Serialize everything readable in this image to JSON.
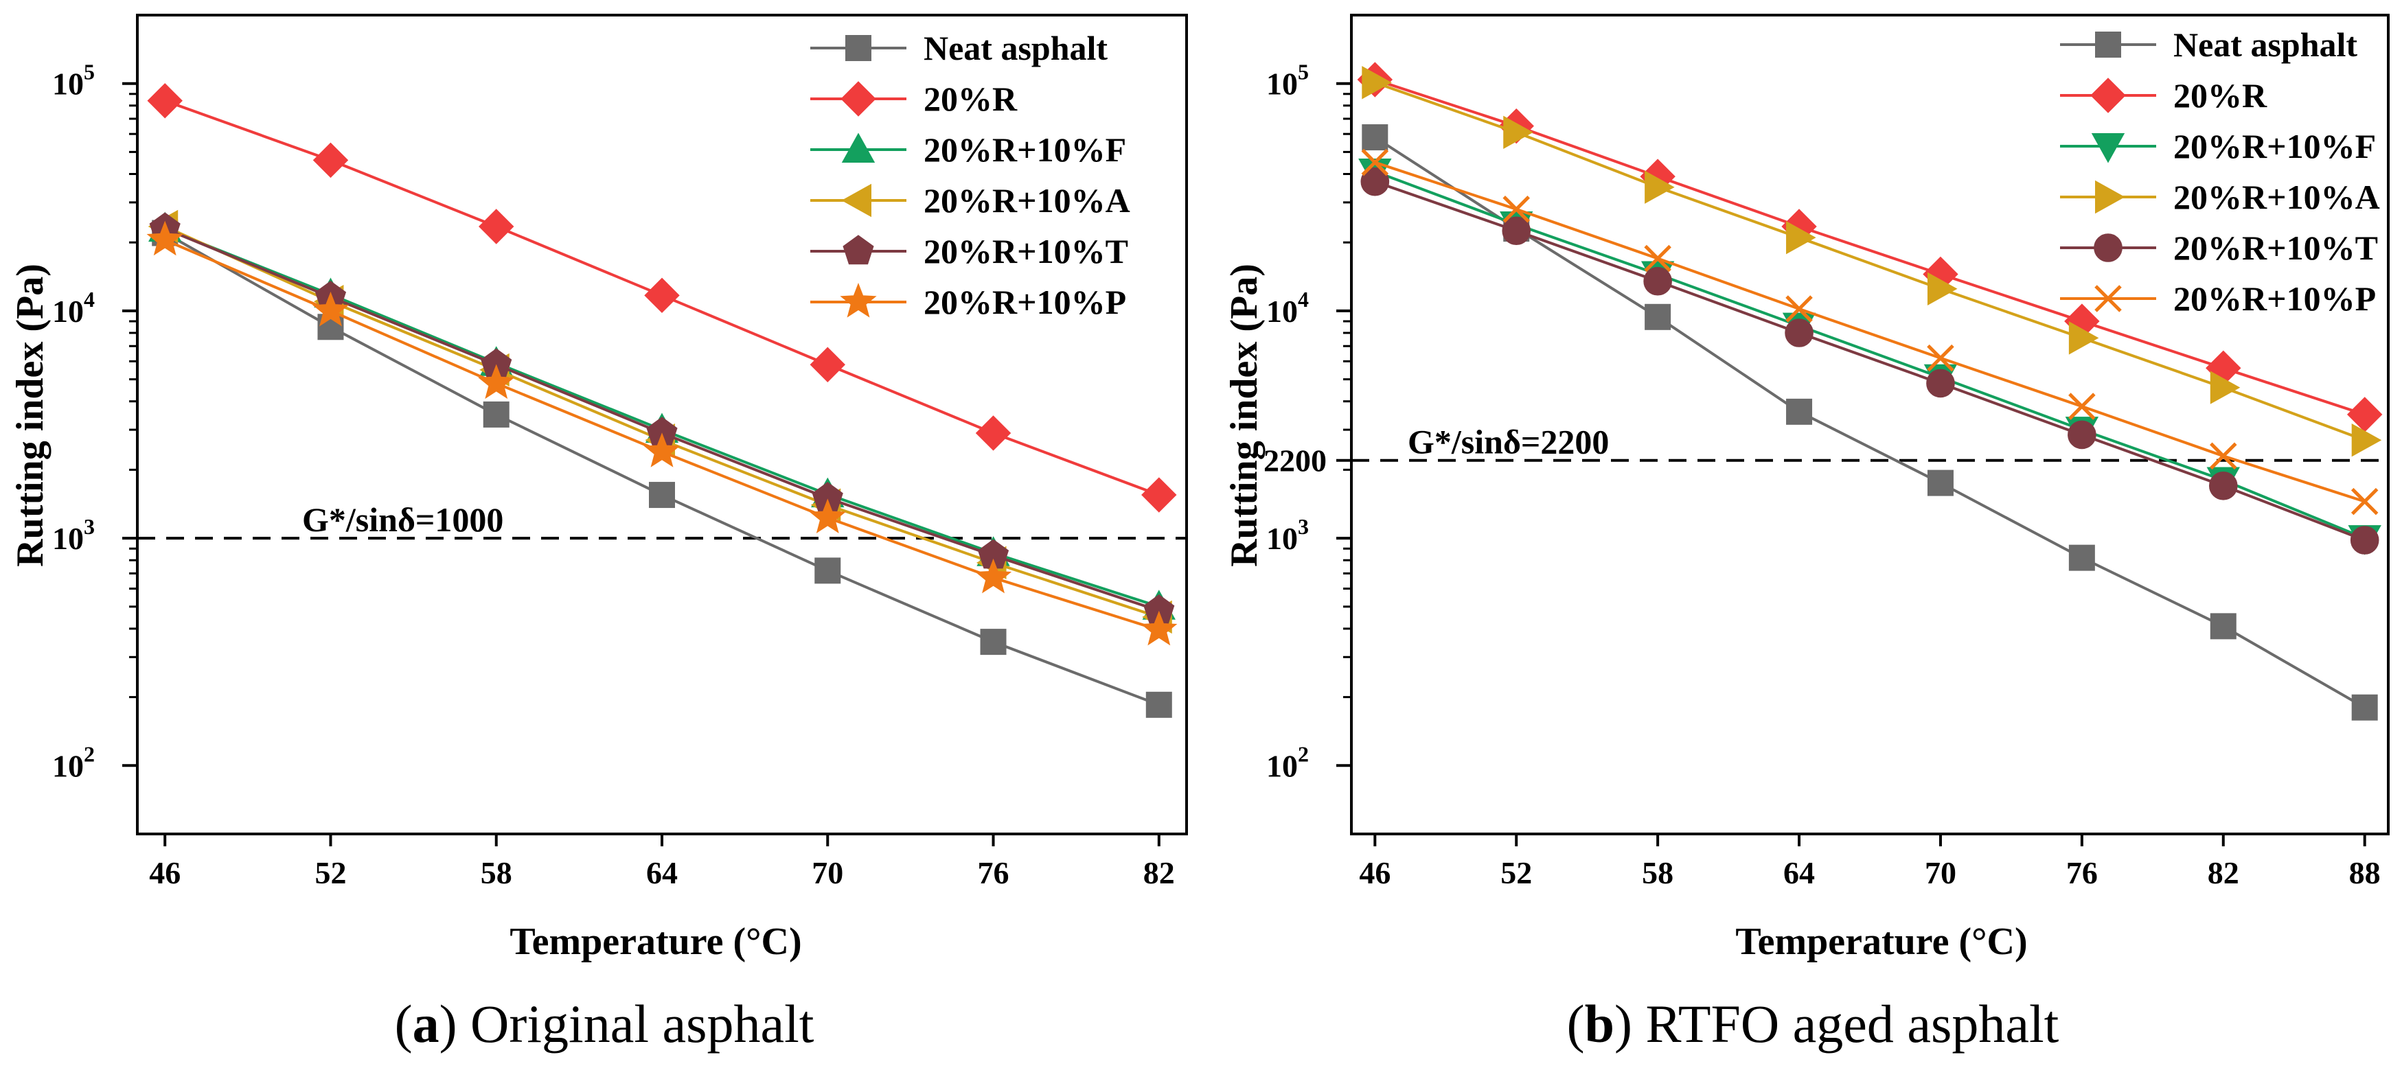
{
  "chart_data": [
    {
      "type": "line",
      "caption_letter": "a",
      "caption_text": " Original asphalt",
      "xlabel": "Temperature (°C)",
      "ylabel": "Rutting index (Pa)",
      "yscale": "log",
      "xlim": [
        45,
        83
      ],
      "ylim": [
        50,
        200000
      ],
      "x": [
        46,
        52,
        58,
        64,
        70,
        76,
        82
      ],
      "xticks": [
        "46",
        "52",
        "58",
        "64",
        "70",
        "76",
        "82"
      ],
      "yticks": [
        {
          "value": 100,
          "base": "10",
          "exp": "2"
        },
        {
          "value": 1000,
          "base": "10",
          "exp": "3"
        },
        {
          "value": 10000,
          "base": "10",
          "exp": "4"
        },
        {
          "value": 100000,
          "base": "10",
          "exp": "5"
        }
      ],
      "reference": {
        "value": 1000,
        "label": "G*/sinδ=1000"
      },
      "legend_position": "top-right",
      "series": [
        {
          "name": "Neat asphalt",
          "color": "#6b6b6b",
          "marker": "square",
          "values": [
            22000,
            8500,
            3500,
            1550,
            720,
            350,
            185
          ]
        },
        {
          "name": "20%R",
          "color": "#f03c3c",
          "marker": "diamond",
          "values": [
            84000,
            46000,
            23500,
            11700,
            5800,
            2900,
            1550
          ]
        },
        {
          "name": "20%R+10%F",
          "color": "#13a05e",
          "marker": "triangle-up",
          "values": [
            23000,
            11800,
            5900,
            3000,
            1560,
            860,
            500
          ]
        },
        {
          "name": "20%R+10%A",
          "color": "#d4a21a",
          "marker": "triangle-left",
          "values": [
            23500,
            11000,
            5500,
            2700,
            1400,
            780,
            450
          ]
        },
        {
          "name": "20%R+10%T",
          "color": "#7d3a42",
          "marker": "pentagon",
          "values": [
            23000,
            11500,
            5800,
            2900,
            1500,
            840,
            480
          ]
        },
        {
          "name": "20%R+10%P",
          "color": "#f07814",
          "marker": "star",
          "values": [
            20500,
            10000,
            4800,
            2400,
            1230,
            670,
            395
          ]
        }
      ]
    },
    {
      "type": "line",
      "caption_letter": "b",
      "caption_text": " RTFO aged asphalt",
      "xlabel": "Temperature (°C)",
      "ylabel": "Rutting index (Pa)",
      "yscale": "log",
      "xlim": [
        45,
        89
      ],
      "ylim": [
        50,
        200000
      ],
      "x": [
        46,
        52,
        58,
        64,
        70,
        76,
        82,
        88
      ],
      "xticks": [
        "46",
        "52",
        "58",
        "64",
        "70",
        "76",
        "82",
        "88"
      ],
      "yticks": [
        {
          "value": 100,
          "base": "10",
          "exp": "2"
        },
        {
          "value": 1000,
          "base": "10",
          "exp": "3"
        },
        {
          "value": 2200,
          "base": "2200",
          "exp": ""
        },
        {
          "value": 10000,
          "base": "10",
          "exp": "4"
        },
        {
          "value": 100000,
          "base": "10",
          "exp": "5"
        }
      ],
      "reference": {
        "value": 2200,
        "label": "G*/sinδ=2200"
      },
      "legend_position": "top-right",
      "series": [
        {
          "name": "Neat asphalt",
          "color": "#6b6b6b",
          "marker": "square",
          "values": [
            58000,
            23000,
            9400,
            3600,
            1750,
            820,
            410,
            180
          ]
        },
        {
          "name": "20%R",
          "color": "#f03c3c",
          "marker": "diamond",
          "values": [
            104000,
            65000,
            39000,
            23500,
            14500,
            9000,
            5600,
            3500
          ]
        },
        {
          "name": "20%R+10%F",
          "color": "#13a05e",
          "marker": "triangle-down",
          "values": [
            41000,
            24000,
            14500,
            8600,
            5100,
            3000,
            1800,
            1000
          ]
        },
        {
          "name": "20%R+10%A",
          "color": "#d4a21a",
          "marker": "triangle-right",
          "values": [
            101000,
            61000,
            35000,
            21000,
            12500,
            7600,
            4600,
            2700
          ]
        },
        {
          "name": "20%R+10%T",
          "color": "#7d3a42",
          "marker": "circle",
          "values": [
            37000,
            22500,
            13500,
            8000,
            4800,
            2850,
            1700,
            980
          ]
        },
        {
          "name": "20%R+10%P",
          "color": "#f07814",
          "marker": "x",
          "values": [
            45000,
            28000,
            17000,
            10200,
            6200,
            3800,
            2300,
            1450
          ]
        }
      ]
    }
  ]
}
